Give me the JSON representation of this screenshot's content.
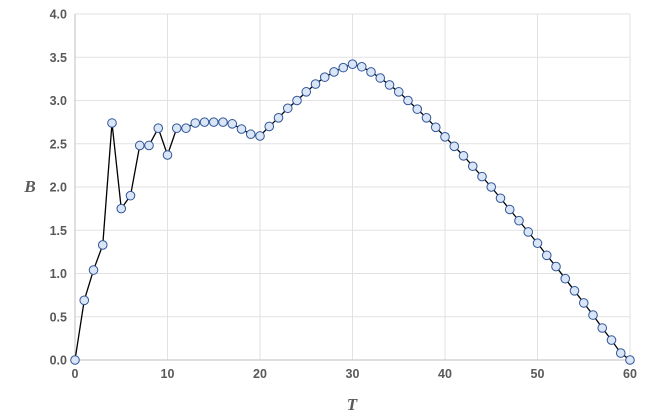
{
  "chart_data": {
    "type": "line",
    "title": "",
    "xlabel": "T",
    "ylabel": "B",
    "xlim": [
      0,
      60
    ],
    "ylim": [
      0,
      4
    ],
    "xticks": [
      0,
      10,
      20,
      30,
      40,
      50,
      60
    ],
    "yticks": [
      0,
      0.5,
      1,
      1.5,
      2,
      2.5,
      3,
      3.5,
      4
    ],
    "ytick_labels": [
      "0.0",
      "0.5",
      "1.0",
      "1.5",
      "2.0",
      "2.5",
      "3.0",
      "3.5",
      "4.0"
    ],
    "xtick_labels": [
      "0",
      "10",
      "20",
      "30",
      "40",
      "50",
      "60"
    ],
    "grid": true,
    "legend": "none",
    "colors": {
      "line": "#000000",
      "marker_fill": "#dae6f7",
      "marker_edge": "#2f5597",
      "grid": "#e2e2e2",
      "axis": "#bfbfbf"
    },
    "series": [
      {
        "x": [
          0,
          1,
          2,
          3,
          4,
          5,
          6,
          7,
          8,
          9,
          10,
          11,
          12,
          13,
          14,
          15,
          16,
          17,
          18,
          19,
          20,
          21,
          22,
          23,
          24,
          25,
          26,
          27,
          28,
          29,
          30,
          31,
          32,
          33,
          34,
          35,
          36,
          37,
          38,
          39,
          40,
          41,
          42,
          43,
          44,
          45,
          46,
          47,
          48,
          49,
          50,
          51,
          52,
          53,
          54,
          55,
          56,
          57,
          58,
          59,
          60
        ],
        "y": [
          0,
          0.69,
          1.04,
          1.33,
          2.74,
          1.75,
          1.9,
          2.48,
          2.48,
          2.68,
          2.37,
          2.68,
          2.68,
          2.74,
          2.75,
          2.75,
          2.75,
          2.73,
          2.67,
          2.61,
          2.59,
          2.7,
          2.8,
          2.91,
          3.0,
          3.1,
          3.19,
          3.27,
          3.33,
          3.38,
          3.42,
          3.39,
          3.33,
          3.26,
          3.18,
          3.1,
          3.0,
          2.9,
          2.8,
          2.69,
          2.58,
          2.47,
          2.36,
          2.24,
          2.12,
          2.0,
          1.87,
          1.74,
          1.61,
          1.48,
          1.35,
          1.21,
          1.08,
          0.94,
          0.8,
          0.66,
          0.52,
          0.37,
          0.23,
          0.08,
          0
        ]
      }
    ]
  }
}
